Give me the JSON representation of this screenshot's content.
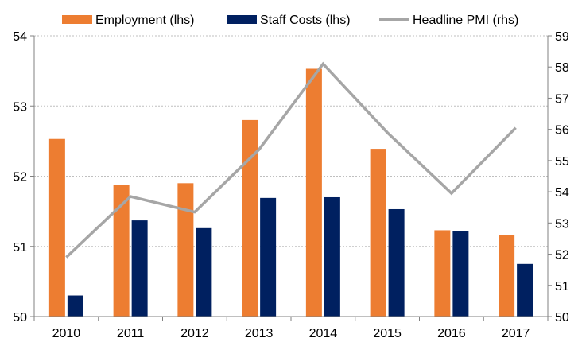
{
  "chart_data": {
    "type": "bar",
    "categories": [
      "2010",
      "2011",
      "2012",
      "2013",
      "2014",
      "2015",
      "2016",
      "2017"
    ],
    "series": [
      {
        "name": "Employment (lhs)",
        "kind": "bar",
        "axis": "left",
        "color": "#ED7D31",
        "values": [
          52.53,
          51.87,
          51.9,
          52.8,
          53.53,
          52.39,
          51.23,
          51.16
        ]
      },
      {
        "name": "Staff Costs (lhs)",
        "kind": "bar",
        "axis": "left",
        "color": "#002060",
        "values": [
          50.3,
          51.37,
          51.26,
          51.69,
          51.7,
          51.53,
          51.22,
          50.75
        ]
      },
      {
        "name": "Headline PMI (rhs)",
        "kind": "line",
        "axis": "right",
        "color": "#A6A6A6",
        "values": [
          51.9,
          53.85,
          53.35,
          55.35,
          58.1,
          55.9,
          53.95,
          56.05
        ]
      }
    ],
    "y_left": {
      "min": 50,
      "max": 54,
      "ticks": [
        "50",
        "51",
        "52",
        "53",
        "54"
      ]
    },
    "y_right": {
      "min": 50,
      "max": 59,
      "ticks": [
        "50",
        "51",
        "52",
        "53",
        "54",
        "55",
        "56",
        "57",
        "58",
        "59"
      ]
    },
    "grid": true,
    "grid_style": "dashed horizontal",
    "legend_position": "top"
  }
}
